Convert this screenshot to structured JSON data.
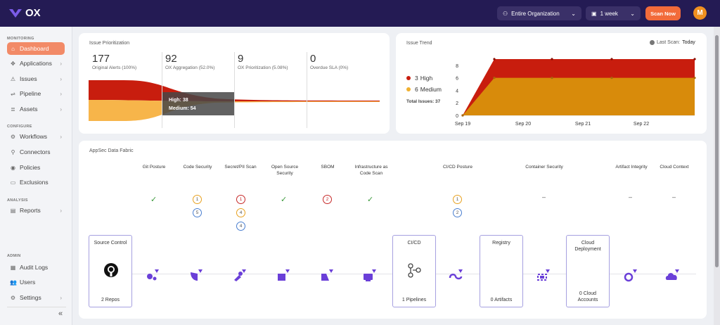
{
  "header": {
    "logo": "OX",
    "org_select": "Entire Organization",
    "period_select": "1 week",
    "scan_button": "Scan Now",
    "avatar_initial": "M"
  },
  "sidebar": {
    "sections": {
      "monitoring": "MONITORING",
      "configure": "CONFIGURE",
      "analysis": "ANALYSIS",
      "admin": "ADMIN"
    },
    "items": {
      "dashboard": "Dashboard",
      "applications": "Applications",
      "issues": "Issues",
      "pipeline": "Pipeline",
      "assets": "Assets",
      "workflows": "Workflows",
      "connectors": "Connectors",
      "policies": "Policies",
      "exclusions": "Exclusions",
      "reports": "Reports",
      "audit_logs": "Audit Logs",
      "users": "Users",
      "settings": "Settings"
    },
    "collapse": "«"
  },
  "prioritization": {
    "title": "Issue Prioritization",
    "stats": [
      {
        "num": "177",
        "label": "Original Alerts (100%)"
      },
      {
        "num": "92",
        "label": "OX Aggregation (52.0%)"
      },
      {
        "num": "9",
        "label": "OX Prioritization (5.08%)"
      },
      {
        "num": "0",
        "label": "Overdue SLA (0%)"
      }
    ],
    "tooltip": {
      "high": "High: 38",
      "medium": "Medium: 54"
    }
  },
  "trend": {
    "title": "Issue Trend",
    "last_scan_label": "Last Scan:",
    "last_scan_value": "Today",
    "legend": [
      {
        "count": "3",
        "label": "High",
        "color": "#c81d0e"
      },
      {
        "count": "6",
        "label": "Medium",
        "color": "#f0b030"
      }
    ],
    "total": "Total Issues: 37"
  },
  "chart_data": {
    "type": "area",
    "x": [
      "Sep 19",
      "Sep 19.5",
      "Sep 20",
      "Sep 20.5",
      "Sep 21",
      "Sep 21.5",
      "Sep 22",
      "Sep 22.9"
    ],
    "xticks": [
      "Sep 19",
      "Sep 20",
      "Sep 21",
      "Sep 22"
    ],
    "yticks": [
      "0",
      "2",
      "4",
      "6",
      "8"
    ],
    "ylim": [
      0,
      9
    ],
    "series": [
      {
        "name": "High",
        "color": "#c81d0e",
        "values": [
          0,
          9,
          9,
          9,
          9,
          9,
          9,
          9
        ]
      },
      {
        "name": "Medium",
        "color": "#d88b0b",
        "values": [
          0,
          6,
          6,
          6,
          6,
          6,
          6,
          6
        ]
      }
    ]
  },
  "fabric": {
    "title": "AppSec Data Fabric",
    "columns": [
      "Git Posture",
      "Code Security",
      "Secret/PII Scan",
      "Open Source Security",
      "SBOM",
      "Infrastructure as Code Scan",
      "CI/CD Posture",
      "Container Security",
      "Artifact Integrity",
      "Cloud Context"
    ],
    "checkmark": "✓",
    "dash": "–",
    "badges": {
      "code_security": [
        "1",
        "5"
      ],
      "secret_scan": [
        "1",
        "4",
        "4"
      ],
      "sbom": [
        "2"
      ],
      "cicd": [
        "1",
        "2"
      ]
    },
    "boxes": {
      "source_control": {
        "title": "Source Control",
        "value": "2 Repos"
      },
      "cicd": {
        "title": "CI/CD",
        "value": "1 Pipelines"
      },
      "registry": {
        "title": "Registry",
        "value": "0 Artifacts"
      },
      "cloud": {
        "title": "Cloud Deployment",
        "value": "0 Cloud Accounts"
      }
    }
  },
  "colors": {
    "accent": "#f26b3a",
    "brand": "#241b54",
    "icon_purple": "#6a3fd8"
  }
}
